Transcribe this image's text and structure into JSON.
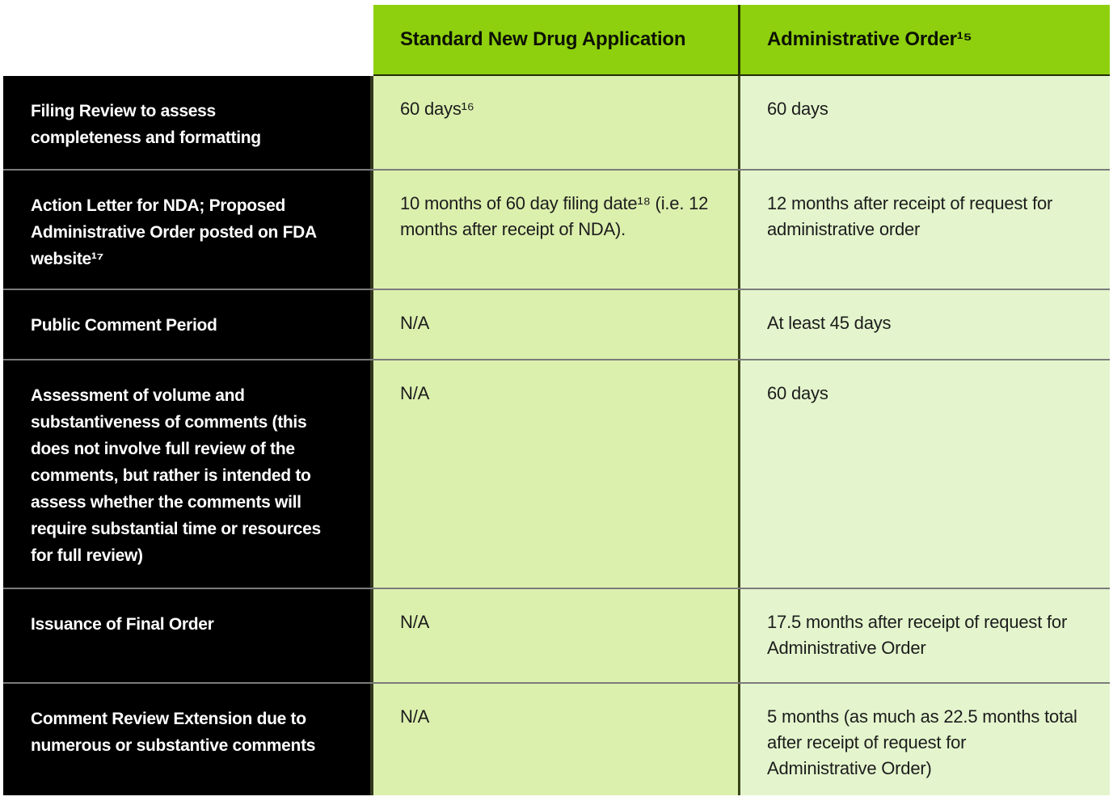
{
  "table": {
    "title_semantic": "FDA review timeline comparison table",
    "columns": [
      "Standard New Drug Application",
      "Administrative Order¹⁵"
    ],
    "rows": [
      {
        "label": "Filing Review to assess completeness and formatting",
        "standard": "60 days¹⁶",
        "admin": "60 days"
      },
      {
        "label": "Action Letter for NDA; Proposed Administrative Order posted on FDA website¹⁷",
        "standard": "10 months of 60 day filing date¹⁸ (i.e. 12 months after receipt of NDA).",
        "admin": "12 months after receipt of request for administrative order"
      },
      {
        "label": "Public Comment Period",
        "standard": "N/A",
        "admin": "At least 45 days"
      },
      {
        "label": "Assessment of volume and substantiveness of comments (this does not involve full review of the comments, but rather is intended to assess whether the comments will require substantial time or resources for full review)",
        "standard": "N/A",
        "admin": "60 days"
      },
      {
        "label": "Issuance of Final Order",
        "standard": "N/A",
        "admin": "17.5 months after receipt of request for Administrative Order"
      },
      {
        "label": "Comment Review Extension due to numerous or substantive comments",
        "standard": "N/A",
        "admin": "5 months (as much as 22.5 months total after receipt of request for Administrative Order)"
      }
    ]
  },
  "colors": {
    "header_green": "#8ed00e",
    "standard_cell_green": "#dcf0ae",
    "admin_cell_green": "#e4f5cd",
    "label_background": "#000000",
    "label_text": "#ffffff",
    "cell_text": "#1c1c1c",
    "row_divider_gray": "#7b7b7b",
    "column_divider_dark": "#39431a"
  }
}
